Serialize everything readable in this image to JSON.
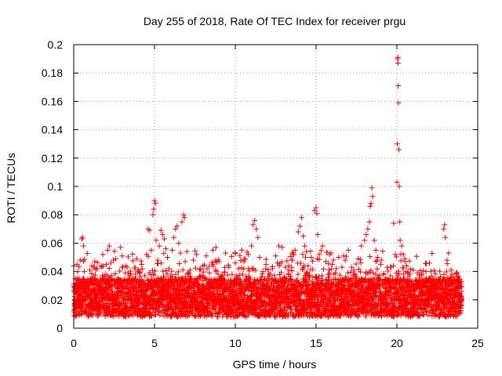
{
  "chart_data": {
    "type": "scatter",
    "title": "Day 255 of 2018, Rate Of TEC Index for receiver prgu",
    "xlabel": "GPS time / hours",
    "ylabel": "ROTI / TECUs",
    "xlim": [
      0,
      25
    ],
    "ylim": [
      0,
      0.2
    ],
    "xticks": [
      0,
      5,
      10,
      15,
      20,
      25
    ],
    "xtick_labels": [
      "0",
      "5",
      "10",
      "15",
      "20",
      "25"
    ],
    "yticks": [
      0,
      0.02,
      0.04,
      0.06,
      0.08,
      0.1,
      0.12,
      0.14,
      0.16,
      0.18,
      0.2
    ],
    "ytick_labels": [
      "0",
      "0.02",
      "0.04",
      "0.06",
      "0.08",
      "0.1",
      "0.12",
      "0.14",
      "0.16",
      "0.18",
      "0.2"
    ],
    "grid": true,
    "marker": "+",
    "series": [
      {
        "name": "ROTI",
        "color": "#ff0000",
        "points": [
          [
            0.05,
            0.02
          ],
          [
            0.1,
            0.035
          ],
          [
            0.15,
            0.015
          ],
          [
            0.2,
            0.045
          ],
          [
            0.25,
            0.025
          ],
          [
            0.3,
            0.012
          ],
          [
            0.35,
            0.03
          ],
          [
            0.4,
            0.048
          ],
          [
            0.45,
            0.02
          ],
          [
            0.5,
            0.063
          ],
          [
            0.55,
            0.064
          ],
          [
            0.6,
            0.058
          ],
          [
            0.65,
            0.04
          ],
          [
            0.7,
            0.022
          ],
          [
            0.75,
            0.017
          ],
          [
            0.8,
            0.033
          ],
          [
            0.9,
            0.028
          ],
          [
            1.0,
            0.041
          ],
          [
            1.1,
            0.018
          ],
          [
            1.2,
            0.036
          ],
          [
            1.3,
            0.047
          ],
          [
            1.4,
            0.023
          ],
          [
            1.5,
            0.031
          ],
          [
            1.6,
            0.019
          ],
          [
            1.7,
            0.044
          ],
          [
            1.8,
            0.052
          ],
          [
            1.9,
            0.027
          ],
          [
            2.0,
            0.038
          ],
          [
            2.1,
            0.055
          ],
          [
            2.2,
            0.058
          ],
          [
            2.3,
            0.046
          ],
          [
            2.4,
            0.021
          ],
          [
            2.5,
            0.034
          ],
          [
            2.6,
            0.049
          ],
          [
            2.7,
            0.016
          ],
          [
            2.8,
            0.03
          ],
          [
            2.9,
            0.057
          ],
          [
            3.0,
            0.051
          ],
          [
            3.1,
            0.025
          ],
          [
            3.2,
            0.039
          ],
          [
            3.3,
            0.043
          ],
          [
            3.5,
            0.029
          ],
          [
            3.7,
            0.035
          ],
          [
            3.9,
            0.022
          ],
          [
            4.0,
            0.041
          ],
          [
            4.1,
            0.032
          ],
          [
            4.2,
            0.045
          ],
          [
            4.3,
            0.026
          ],
          [
            4.4,
            0.037
          ],
          [
            4.5,
            0.052
          ],
          [
            4.6,
            0.07
          ],
          [
            4.7,
            0.069
          ],
          [
            4.8,
            0.055
          ],
          [
            4.9,
            0.08
          ],
          [
            4.95,
            0.084
          ],
          [
            5.0,
            0.09
          ],
          [
            5.05,
            0.088
          ],
          [
            5.1,
            0.062
          ],
          [
            5.2,
            0.048
          ],
          [
            5.3,
            0.058
          ],
          [
            5.4,
            0.069
          ],
          [
            5.5,
            0.066
          ],
          [
            5.6,
            0.063
          ],
          [
            5.7,
            0.056
          ],
          [
            5.8,
            0.05
          ],
          [
            5.9,
            0.042
          ],
          [
            6.0,
            0.037
          ],
          [
            6.1,
            0.055
          ],
          [
            6.2,
            0.064
          ],
          [
            6.3,
            0.07
          ],
          [
            6.4,
            0.072
          ],
          [
            6.5,
            0.06
          ],
          [
            6.6,
            0.053
          ],
          [
            6.7,
            0.075
          ],
          [
            6.8,
            0.08
          ],
          [
            6.85,
            0.078
          ],
          [
            6.9,
            0.047
          ],
          [
            7.0,
            0.054
          ],
          [
            7.2,
            0.041
          ],
          [
            7.4,
            0.048
          ],
          [
            7.6,
            0.052
          ],
          [
            7.8,
            0.036
          ],
          [
            8.0,
            0.044
          ],
          [
            8.2,
            0.051
          ],
          [
            8.4,
            0.039
          ],
          [
            8.6,
            0.045
          ],
          [
            8.8,
            0.057
          ],
          [
            9.0,
            0.047
          ],
          [
            9.2,
            0.035
          ],
          [
            9.4,
            0.053
          ],
          [
            9.6,
            0.043
          ],
          [
            9.8,
            0.038
          ],
          [
            10.0,
            0.046
          ],
          [
            10.2,
            0.042
          ],
          [
            10.4,
            0.055
          ],
          [
            10.6,
            0.049
          ],
          [
            10.8,
            0.052
          ],
          [
            11.0,
            0.058
          ],
          [
            11.1,
            0.073
          ],
          [
            11.2,
            0.076
          ],
          [
            11.3,
            0.07
          ],
          [
            11.4,
            0.064
          ],
          [
            11.5,
            0.05
          ],
          [
            11.7,
            0.04
          ],
          [
            11.9,
            0.045
          ],
          [
            12.1,
            0.035
          ],
          [
            12.3,
            0.042
          ],
          [
            12.5,
            0.051
          ],
          [
            12.7,
            0.058
          ],
          [
            12.9,
            0.057
          ],
          [
            13.1,
            0.043
          ],
          [
            13.3,
            0.038
          ],
          [
            13.5,
            0.048
          ],
          [
            13.7,
            0.055
          ],
          [
            13.9,
            0.068
          ],
          [
            14.0,
            0.072
          ],
          [
            14.1,
            0.078
          ],
          [
            14.2,
            0.065
          ],
          [
            14.3,
            0.058
          ],
          [
            14.4,
            0.054
          ],
          [
            14.5,
            0.044
          ],
          [
            14.7,
            0.05
          ],
          [
            14.9,
            0.083
          ],
          [
            15.0,
            0.085
          ],
          [
            15.05,
            0.081
          ],
          [
            15.1,
            0.066
          ],
          [
            15.2,
            0.052
          ],
          [
            15.4,
            0.058
          ],
          [
            15.6,
            0.047
          ],
          [
            15.8,
            0.036
          ],
          [
            16.0,
            0.045
          ],
          [
            16.2,
            0.039
          ],
          [
            16.4,
            0.05
          ],
          [
            16.6,
            0.043
          ],
          [
            16.8,
            0.048
          ],
          [
            17.0,
            0.055
          ],
          [
            17.2,
            0.043
          ],
          [
            17.4,
            0.038
          ],
          [
            17.6,
            0.049
          ],
          [
            17.8,
            0.058
          ],
          [
            18.0,
            0.062
          ],
          [
            18.1,
            0.066
          ],
          [
            18.2,
            0.07
          ],
          [
            18.3,
            0.075
          ],
          [
            18.35,
            0.086
          ],
          [
            18.4,
            0.088
          ],
          [
            18.45,
            0.099
          ],
          [
            18.5,
            0.093
          ],
          [
            18.6,
            0.062
          ],
          [
            18.7,
            0.055
          ],
          [
            18.8,
            0.05
          ],
          [
            19.0,
            0.045
          ],
          [
            19.2,
            0.038
          ],
          [
            19.4,
            0.043
          ],
          [
            19.6,
            0.037
          ],
          [
            19.8,
            0.074
          ],
          [
            19.9,
            0.052
          ],
          [
            20.0,
            0.103
          ],
          [
            20.02,
            0.13
          ],
          [
            20.05,
            0.19
          ],
          [
            20.06,
            0.191
          ],
          [
            20.07,
            0.187
          ],
          [
            20.08,
            0.171
          ],
          [
            20.1,
            0.159
          ],
          [
            20.12,
            0.126
          ],
          [
            20.15,
            0.1
          ],
          [
            20.18,
            0.075
          ],
          [
            20.2,
            0.062
          ],
          [
            20.3,
            0.058
          ],
          [
            20.4,
            0.052
          ],
          [
            20.5,
            0.047
          ],
          [
            20.6,
            0.044
          ],
          [
            20.8,
            0.038
          ],
          [
            21.0,
            0.041
          ],
          [
            21.2,
            0.033
          ],
          [
            21.4,
            0.036
          ],
          [
            21.6,
            0.029
          ],
          [
            21.8,
            0.04
          ],
          [
            22.0,
            0.035
          ],
          [
            22.2,
            0.027
          ],
          [
            22.4,
            0.031
          ],
          [
            22.6,
            0.028
          ],
          [
            22.8,
            0.032
          ],
          [
            22.9,
            0.07
          ],
          [
            22.95,
            0.073
          ],
          [
            23.0,
            0.064
          ],
          [
            23.1,
            0.048
          ],
          [
            23.2,
            0.053
          ],
          [
            23.4,
            0.038
          ],
          [
            23.6,
            0.033
          ],
          [
            23.8,
            0.029
          ],
          [
            23.9,
            0.024
          ],
          [
            23.95,
            0.019
          ]
        ],
        "band": {
          "start": 0,
          "end": 24,
          "step": 0.02,
          "baseline_min": 0.008,
          "baseline_max": 0.035,
          "spread": 0.022
        }
      }
    ]
  }
}
